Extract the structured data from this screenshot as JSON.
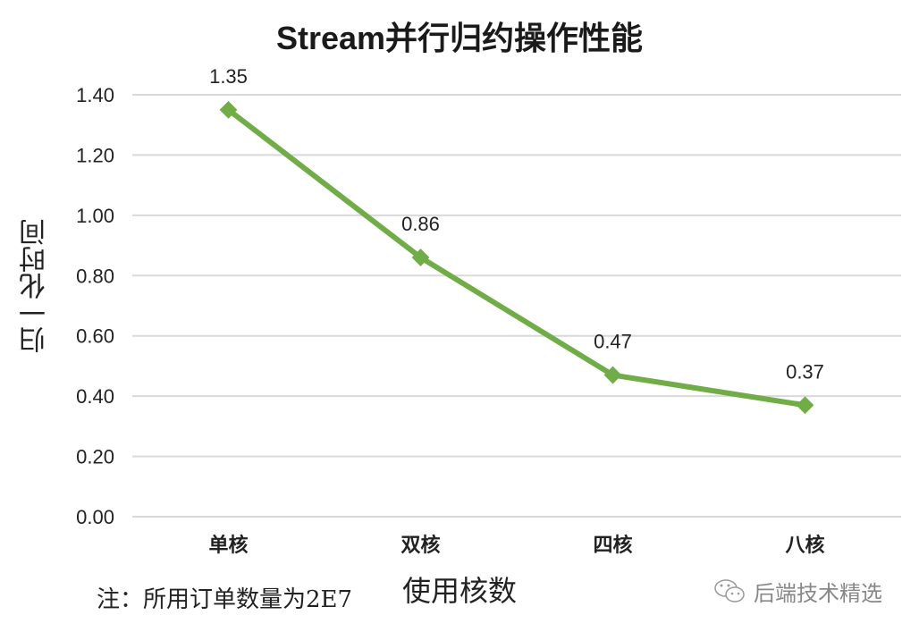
{
  "chart_data": {
    "type": "line",
    "title": "Stream并行归约操作性能",
    "xlabel": "使用核数",
    "ylabel": "归一化时间",
    "categories": [
      "单核",
      "双核",
      "四核",
      "八核"
    ],
    "series": [
      {
        "name": "归一化时间",
        "values": [
          1.35,
          0.86,
          0.47,
          0.37
        ],
        "color": "#70ad47"
      }
    ],
    "data_labels": [
      "1.35",
      "0.86",
      "0.47",
      "0.37"
    ],
    "yticks": [
      "0.00",
      "0.20",
      "0.40",
      "0.60",
      "0.80",
      "1.00",
      "1.20",
      "1.40"
    ],
    "ylim": [
      0,
      1.4
    ],
    "grid": true,
    "legend": "none"
  },
  "annotations": {
    "note": "注：所用订单数量为2E7",
    "watermark": "后端技术精选"
  },
  "colors": {
    "line": "#70ad47",
    "grid": "#d9d9d9",
    "text": "#222222"
  }
}
